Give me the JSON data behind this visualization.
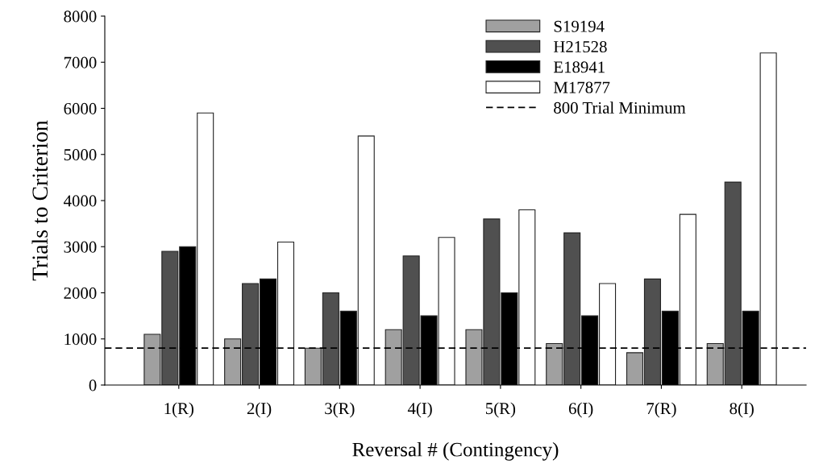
{
  "chart_data": {
    "type": "bar",
    "xlabel": "Reversal # (Contingency)",
    "ylabel": "Trials to Criterion",
    "categories": [
      "1(R)",
      "2(I)",
      "3(R)",
      "4(I)",
      "5(R)",
      "6(I)",
      "7(R)",
      "8(I)"
    ],
    "series": [
      {
        "name": "S19194",
        "color": "#a0a0a0",
        "values": [
          1100,
          1000,
          800,
          1200,
          1200,
          900,
          700,
          900
        ]
      },
      {
        "name": "H21528",
        "color": "#505050",
        "values": [
          2900,
          2200,
          2000,
          2800,
          3600,
          3300,
          2300,
          4400
        ]
      },
      {
        "name": "E18941",
        "color": "#000000",
        "values": [
          3000,
          2300,
          1600,
          1500,
          2000,
          1500,
          1600,
          1600
        ]
      },
      {
        "name": "M17877",
        "color": "#ffffff",
        "values": [
          5900,
          3100,
          5400,
          3200,
          3800,
          2200,
          3700,
          7200
        ]
      }
    ],
    "ylim": [
      0,
      8000
    ],
    "yticks": [
      0,
      1000,
      2000,
      3000,
      4000,
      5000,
      6000,
      7000,
      8000
    ],
    "ref_lines": [
      {
        "axis": "y",
        "value": 800,
        "label": "800 Trial Minimum",
        "color": "#000000",
        "line_style": "dashed"
      }
    ],
    "legend": "top right",
    "grid": false
  }
}
